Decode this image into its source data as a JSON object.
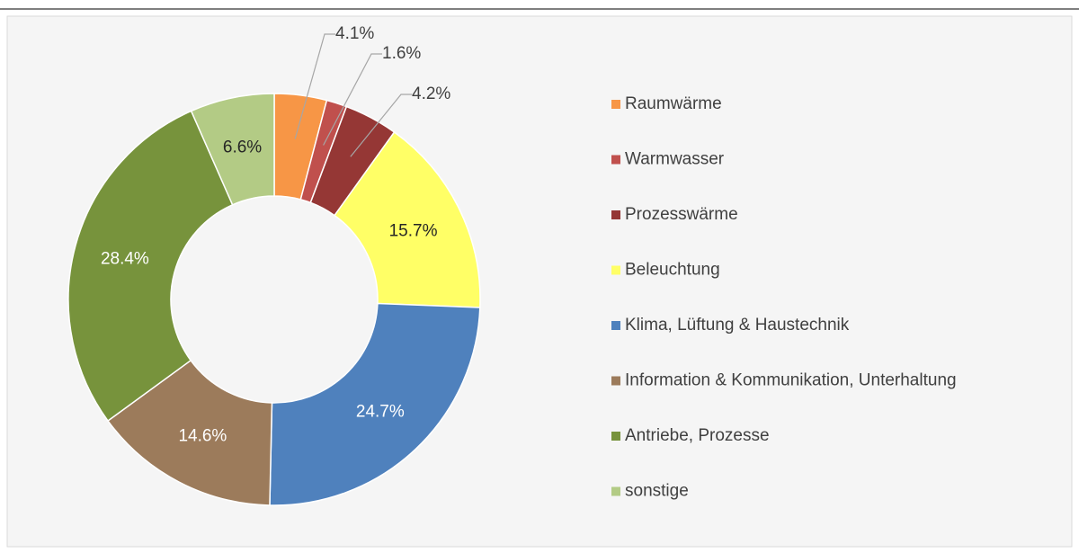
{
  "chart_data": {
    "type": "donut",
    "categories": [
      "Raumwärme",
      "Warmwasser",
      "Prozesswärme",
      "Beleuchtung",
      "Klima, Lüftung & Haustechnik",
      "Information & Kommunikation, Unterhaltung",
      "Antriebe, Prozesse",
      "sonstige"
    ],
    "values": [
      4.1,
      1.6,
      4.2,
      15.7,
      24.7,
      14.6,
      28.4,
      6.6
    ],
    "value_labels": [
      "4.1%",
      "1.6%",
      "4.2%",
      "15.7%",
      "24.7%",
      "14.6%",
      "28.4%",
      "6.6%"
    ],
    "colors": [
      "#f79646",
      "#c0504d",
      "#953735",
      "#ffff66",
      "#4f81bd",
      "#9c7b5b",
      "#77933c",
      "#b3cb85"
    ],
    "legend": "right"
  }
}
